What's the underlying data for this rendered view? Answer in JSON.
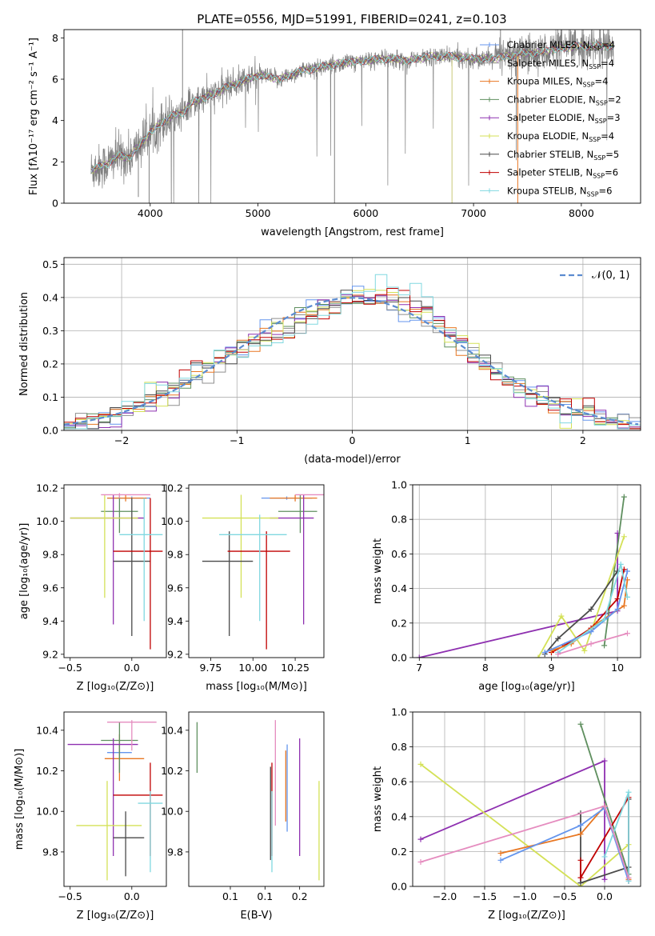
{
  "title": "PLATE=0556, MJD=51991, FIBERID=0241, z=0.103",
  "colors": {
    "Chabrier MILES": "#6495ed",
    "Salpeter MILES": "#8f8f8f",
    "Kroupa MILES": "#e87722",
    "Chabrier ELODIE": "#5f8f5f",
    "Salpeter ELODIE": "#8e30b0",
    "Kroupa ELODIE": "#d4e157",
    "Chabrier STELIB": "#4a4a4a",
    "Salpeter STELIB": "#c00000",
    "Kroupa STELIB": "#80d8e0",
    "pink": "#e58cbf",
    "data": "#808080",
    "normal": "#5b8bd0"
  },
  "legend1": [
    {
      "model": "Chabrier MILES",
      "nssp": "4"
    },
    {
      "model": "Salpeter MILES",
      "nssp": "4"
    },
    {
      "model": "Kroupa MILES",
      "nssp": "4"
    },
    {
      "model": "Chabrier ELODIE",
      "nssp": "2"
    },
    {
      "model": "Salpeter ELODIE",
      "nssp": "3"
    },
    {
      "model": "Kroupa ELODIE",
      "nssp": "4"
    },
    {
      "model": "Chabrier STELIB",
      "nssp": "5"
    },
    {
      "model": "Salpeter STELIB",
      "nssp": "6"
    },
    {
      "model": "Kroupa STELIB",
      "nssp": "6"
    }
  ],
  "legend2": "𝒩(0, 1)",
  "chart_data": [
    {
      "id": "spectrum",
      "type": "line",
      "xlabel": "wavelength [Angstrom, rest frame]",
      "ylabel": "Flux [fλ10⁻¹⁷ erg cm⁻² s⁻¹ A⁻¹]",
      "xlim": [
        3200,
        8550
      ],
      "ylim": [
        0,
        8.4
      ],
      "xticks": [
        4000,
        5000,
        6000,
        7000,
        8000
      ],
      "yticks": [
        0,
        2,
        4,
        6,
        8
      ],
      "continuum": [
        [
          3450,
          1.6
        ],
        [
          3600,
          1.9
        ],
        [
          3700,
          2.3
        ],
        [
          3800,
          2.2
        ],
        [
          3900,
          2.8
        ],
        [
          4000,
          3.4
        ],
        [
          4100,
          3.9
        ],
        [
          4200,
          4.2
        ],
        [
          4300,
          4.4
        ],
        [
          4400,
          4.9
        ],
        [
          4500,
          5.1
        ],
        [
          4600,
          5.3
        ],
        [
          4700,
          5.6
        ],
        [
          4800,
          5.8
        ],
        [
          4900,
          6.0
        ],
        [
          5000,
          6.2
        ],
        [
          5200,
          6.0
        ],
        [
          5400,
          6.4
        ],
        [
          5600,
          6.6
        ],
        [
          5800,
          6.8
        ],
        [
          6000,
          6.9
        ],
        [
          6200,
          7.0
        ],
        [
          6400,
          6.9
        ],
        [
          6600,
          7.1
        ],
        [
          6800,
          7.1
        ],
        [
          7000,
          7.0
        ],
        [
          7200,
          7.0
        ],
        [
          7400,
          7.2
        ],
        [
          7600,
          7.3
        ],
        [
          7800,
          7.5
        ],
        [
          8000,
          7.6
        ],
        [
          8300,
          7.6
        ]
      ]
    },
    {
      "id": "residuals",
      "type": "step",
      "xlabel": "(data-model)/error",
      "ylabel": "Normed distribution",
      "xlim": [
        -2.5,
        2.5
      ],
      "ylim": [
        0,
        0.52
      ],
      "xticks": [
        -2,
        -1,
        0,
        1,
        2
      ],
      "yticks": [
        0.0,
        0.1,
        0.2,
        0.3,
        0.4,
        0.5
      ],
      "grid": true
    },
    {
      "id": "age_vs_Z",
      "type": "errorbar",
      "xlabel": "Z [log₁₀(Z/Z⊙)]",
      "ylabel": "age  [log₁₀(age/yr)]",
      "xlim": [
        -0.55,
        0.28
      ],
      "ylim": [
        9.18,
        10.22
      ],
      "xticks": [
        -0.5,
        0.0
      ],
      "yticks": [
        9.2,
        9.4,
        9.6,
        9.8,
        10.0,
        10.2
      ],
      "points": [
        {
          "s": "Chabrier MILES",
          "x": 0.0,
          "xe": [
            -0.2,
            0.15
          ],
          "y": 10.14,
          "ye": [
            10.13,
            10.15
          ]
        },
        {
          "s": "Kroupa MILES",
          "x": -0.05,
          "xe": [
            -0.2,
            0.12
          ],
          "y": 10.14,
          "ye": [
            10.12,
            10.16
          ]
        },
        {
          "s": "Chabrier ELODIE",
          "x": -0.1,
          "xe": [
            -0.25,
            0.05
          ],
          "y": 10.06,
          "ye": [
            9.93,
            10.16
          ]
        },
        {
          "s": "Salpeter ELODIE",
          "x": -0.15,
          "xe": [
            -0.5,
            0.1
          ],
          "y": 10.02,
          "ye": [
            9.38,
            10.16
          ]
        },
        {
          "s": "Kroupa ELODIE",
          "x": -0.22,
          "xe": [
            -0.5,
            0.05
          ],
          "y": 10.02,
          "ye": [
            9.54,
            10.16
          ]
        },
        {
          "s": "Chabrier STELIB",
          "x": 0.0,
          "xe": [
            -0.15,
            0.15
          ],
          "y": 9.76,
          "ye": [
            9.31,
            10.14
          ]
        },
        {
          "s": "Salpeter STELIB",
          "x": 0.15,
          "xe": [
            -0.15,
            0.25
          ],
          "y": 9.82,
          "ye": [
            9.23,
            10.14
          ]
        },
        {
          "s": "Kroupa STELIB",
          "x": 0.1,
          "xe": [
            -0.1,
            0.25
          ],
          "y": 9.92,
          "ye": [
            9.4,
            10.14
          ]
        },
        {
          "s": "pink",
          "x": -0.1,
          "xe": [
            -0.25,
            0.15
          ],
          "y": 10.16,
          "ye": [
            10.14,
            10.17
          ]
        }
      ]
    },
    {
      "id": "age_vs_mass",
      "type": "errorbar",
      "xlabel": "mass [log₁₀(M/M⊙)]",
      "ylabel": "",
      "xlim": [
        9.62,
        10.42
      ],
      "ylim": [
        9.18,
        10.22
      ],
      "xticks": [
        9.75,
        10.0,
        10.25
      ],
      "yticks": [
        9.2,
        9.4,
        9.6,
        9.8,
        10.0,
        10.2
      ],
      "points": [
        {
          "s": "Chabrier MILES",
          "x": 10.2,
          "xe": [
            10.05,
            10.35
          ],
          "y": 10.14,
          "ye": [
            10.13,
            10.15
          ]
        },
        {
          "s": "Kroupa MILES",
          "x": 10.25,
          "xe": [
            10.1,
            10.38
          ],
          "y": 10.14,
          "ye": [
            10.12,
            10.16
          ]
        },
        {
          "s": "Chabrier ELODIE",
          "x": 10.28,
          "xe": [
            10.15,
            10.38
          ],
          "y": 10.06,
          "ye": [
            9.93,
            10.16
          ]
        },
        {
          "s": "Salpeter ELODIE",
          "x": 10.3,
          "xe": [
            10.1,
            10.36
          ],
          "y": 10.02,
          "ye": [
            9.38,
            10.16
          ]
        },
        {
          "s": "Kroupa ELODIE",
          "x": 9.93,
          "xe": [
            9.7,
            10.15
          ],
          "y": 10.02,
          "ye": [
            9.54,
            10.16
          ]
        },
        {
          "s": "Chabrier STELIB",
          "x": 9.86,
          "xe": [
            9.7,
            10.0
          ],
          "y": 9.76,
          "ye": [
            9.31,
            9.94
          ]
        },
        {
          "s": "Salpeter STELIB",
          "x": 10.08,
          "xe": [
            9.85,
            10.22
          ],
          "y": 9.82,
          "ye": [
            9.23,
            9.94
          ]
        },
        {
          "s": "Kroupa STELIB",
          "x": 10.04,
          "xe": [
            9.8,
            10.2
          ],
          "y": 9.92,
          "ye": [
            9.4,
            10.04
          ]
        },
        {
          "s": "pink",
          "x": 10.44,
          "xe": [
            10.25,
            10.45
          ],
          "y": 10.16,
          "ye": [
            10.02,
            10.17
          ]
        }
      ]
    },
    {
      "id": "weight_vs_age",
      "type": "line",
      "xlabel": "age  [log₁₀(age/yr)]",
      "ylabel": "mass weight",
      "xlim": [
        6.9,
        10.35
      ],
      "ylim": [
        0,
        1
      ],
      "xticks": [
        7,
        8,
        9,
        10
      ],
      "yticks": [
        0.0,
        0.2,
        0.4,
        0.6,
        0.8,
        1.0
      ],
      "grid": true,
      "series": [
        {
          "s": "Salpeter ELODIE",
          "x": [
            7.0,
            10.0,
            10.0
          ],
          "y": [
            0.0,
            0.27,
            0.72
          ]
        },
        {
          "s": "Chabrier ELODIE",
          "x": [
            9.8,
            10.1
          ],
          "y": [
            0.07,
            0.93
          ]
        },
        {
          "s": "Kroupa ELODIE",
          "x": [
            8.8,
            9.15,
            9.5,
            10.1
          ],
          "y": [
            0.0,
            0.24,
            0.04,
            0.7
          ]
        },
        {
          "s": "Chabrier STELIB",
          "x": [
            8.9,
            9.1,
            9.6,
            10.0
          ],
          "y": [
            0.02,
            0.11,
            0.28,
            0.5
          ]
        },
        {
          "s": "Salpeter STELIB",
          "x": [
            9.0,
            9.2,
            9.6,
            10.0,
            10.1
          ],
          "y": [
            0.03,
            0.07,
            0.17,
            0.34,
            0.51
          ]
        },
        {
          "s": "Kroupa MILES",
          "x": [
            9.0,
            9.3,
            9.7,
            10.1,
            10.15
          ],
          "y": [
            0.04,
            0.08,
            0.2,
            0.3,
            0.45
          ]
        },
        {
          "s": "Chabrier MILES",
          "x": [
            8.9,
            9.6,
            10.0,
            10.15
          ],
          "y": [
            0.03,
            0.15,
            0.28,
            0.5
          ]
        },
        {
          "s": "Kroupa STELIB",
          "x": [
            9.1,
            9.8,
            10.05,
            10.15
          ],
          "y": [
            0.03,
            0.22,
            0.54,
            0.35
          ]
        },
        {
          "s": "pink",
          "x": [
            9.1,
            9.6,
            10.15
          ],
          "y": [
            0.02,
            0.08,
            0.14
          ]
        }
      ]
    },
    {
      "id": "mass_vs_Z",
      "type": "errorbar",
      "xlabel": "Z [log₁₀(Z/Z⊙)]",
      "ylabel": "mass [log₁₀(M/M⊙)]",
      "xlim": [
        -0.55,
        0.28
      ],
      "ylim": [
        9.63,
        10.49
      ],
      "xticks": [
        -0.5,
        0.0
      ],
      "yticks": [
        9.8,
        10.0,
        10.2,
        10.4
      ],
      "points": [
        {
          "s": "Chabrier MILES",
          "x": -0.1,
          "xe": [
            -0.2,
            0.0
          ],
          "y": 10.29,
          "ye": [
            10.2,
            10.35
          ]
        },
        {
          "s": "Kroupa MILES",
          "x": -0.1,
          "xe": [
            -0.22,
            0.1
          ],
          "y": 10.26,
          "ye": [
            10.15,
            10.38
          ]
        },
        {
          "s": "Chabrier ELODIE",
          "x": -0.1,
          "xe": [
            -0.25,
            0.05
          ],
          "y": 10.35,
          "ye": [
            10.19,
            10.44
          ]
        },
        {
          "s": "Salpeter ELODIE",
          "x": -0.15,
          "xe": [
            -0.52,
            0.05
          ],
          "y": 10.33,
          "ye": [
            9.78,
            10.36
          ]
        },
        {
          "s": "Kroupa ELODIE",
          "x": -0.2,
          "xe": [
            -0.45,
            0.08
          ],
          "y": 9.93,
          "ye": [
            9.66,
            10.15
          ]
        },
        {
          "s": "Chabrier STELIB",
          "x": -0.05,
          "xe": [
            -0.15,
            0.1
          ],
          "y": 9.87,
          "ye": [
            9.68,
            10.0
          ]
        },
        {
          "s": "Salpeter STELIB",
          "x": 0.15,
          "xe": [
            -0.15,
            0.25
          ],
          "y": 10.08,
          "ye": [
            9.78,
            10.24
          ]
        },
        {
          "s": "Kroupa STELIB",
          "x": 0.15,
          "xe": [
            0.05,
            0.25
          ],
          "y": 10.04,
          "ye": [
            9.7,
            10.1
          ]
        },
        {
          "s": "pink",
          "x": 0.0,
          "xe": [
            -0.2,
            0.2
          ],
          "y": 10.44,
          "ye": [
            10.3,
            10.45
          ]
        }
      ]
    },
    {
      "id": "mass_vs_EBV",
      "type": "errorbar",
      "xlabel": "E(B-V)",
      "ylabel": "",
      "xlim": [
        0.04,
        0.235
      ],
      "ylim": [
        9.63,
        10.49
      ],
      "xticks": [
        0.1,
        0.15,
        0.2
      ],
      "yticks": [
        9.8,
        10.0,
        10.2,
        10.4
      ],
      "points": [
        {
          "s": "Chabrier ELODIE",
          "x": 0.052,
          "y": 10.35,
          "ye": [
            10.19,
            10.44
          ]
        },
        {
          "s": "Chabrier STELIB",
          "x": 0.158,
          "y": 9.95,
          "ye": [
            9.76,
            10.22
          ]
        },
        {
          "s": "Salpeter STELIB",
          "x": 0.16,
          "y": 10.0,
          "ye": [
            9.78,
            10.24
          ]
        },
        {
          "s": "Kroupa STELIB",
          "x": 0.16,
          "y": 9.95,
          "ye": [
            9.7,
            10.1
          ]
        },
        {
          "s": "pink",
          "x": 0.165,
          "y": 10.2,
          "ye": [
            9.93,
            10.45
          ]
        },
        {
          "s": "Kroupa MILES",
          "x": 0.18,
          "y": 10.1,
          "ye": [
            9.95,
            10.3
          ]
        },
        {
          "s": "Chabrier MILES",
          "x": 0.182,
          "y": 10.1,
          "ye": [
            9.9,
            10.33
          ]
        },
        {
          "s": "Salpeter ELODIE",
          "x": 0.2,
          "y": 10.0,
          "ye": [
            9.78,
            10.36
          ]
        },
        {
          "s": "Kroupa ELODIE",
          "x": 0.228,
          "y": 9.9,
          "ye": [
            9.66,
            10.15
          ]
        }
      ]
    },
    {
      "id": "weight_vs_Z",
      "type": "line",
      "xlabel": "Z [log₁₀(Z/Z⊙)]",
      "ylabel": "mass weight",
      "xlim": [
        -2.4,
        0.45
      ],
      "ylim": [
        0,
        1
      ],
      "xticks": [
        -2.0,
        -1.5,
        -1.0,
        -0.5,
        0.0
      ],
      "yticks": [
        0.0,
        0.2,
        0.4,
        0.6,
        0.8,
        1.0
      ],
      "grid": true,
      "series": [
        {
          "s": "Salpeter ELODIE",
          "x": [
            -2.3,
            0.0,
            0.0
          ],
          "y": [
            0.27,
            0.72,
            0.04
          ]
        },
        {
          "s": "Chabrier ELODIE",
          "x": [
            -0.3,
            0.3
          ],
          "y": [
            0.93,
            0.07
          ]
        },
        {
          "s": "Kroupa ELODIE",
          "x": [
            -2.3,
            -0.3,
            0.3
          ],
          "y": [
            0.7,
            0.0,
            0.24
          ]
        },
        {
          "s": "Chabrier STELIB",
          "x": [
            -0.3,
            -0.3,
            0.3,
            0.3
          ],
          "y": [
            0.42,
            0.02,
            0.11,
            0.5
          ]
        },
        {
          "s": "Salpeter STELIB",
          "x": [
            -0.3,
            -0.3,
            0.3,
            0.3
          ],
          "y": [
            0.15,
            0.05,
            0.51,
            0.03
          ]
        },
        {
          "s": "Kroupa MILES",
          "x": [
            -1.3,
            -0.3,
            0.0,
            0.3
          ],
          "y": [
            0.19,
            0.3,
            0.46,
            0.04
          ]
        },
        {
          "s": "Chabrier MILES",
          "x": [
            -1.3,
            -0.3,
            0.0,
            0.3
          ],
          "y": [
            0.15,
            0.35,
            0.45,
            0.03
          ]
        },
        {
          "s": "Kroupa STELIB",
          "x": [
            0.0,
            0.3,
            0.3
          ],
          "y": [
            0.17,
            0.54,
            0.03
          ]
        },
        {
          "s": "pink",
          "x": [
            -2.3,
            0.0,
            0.3
          ],
          "y": [
            0.14,
            0.46,
            0.05
          ]
        }
      ]
    }
  ]
}
